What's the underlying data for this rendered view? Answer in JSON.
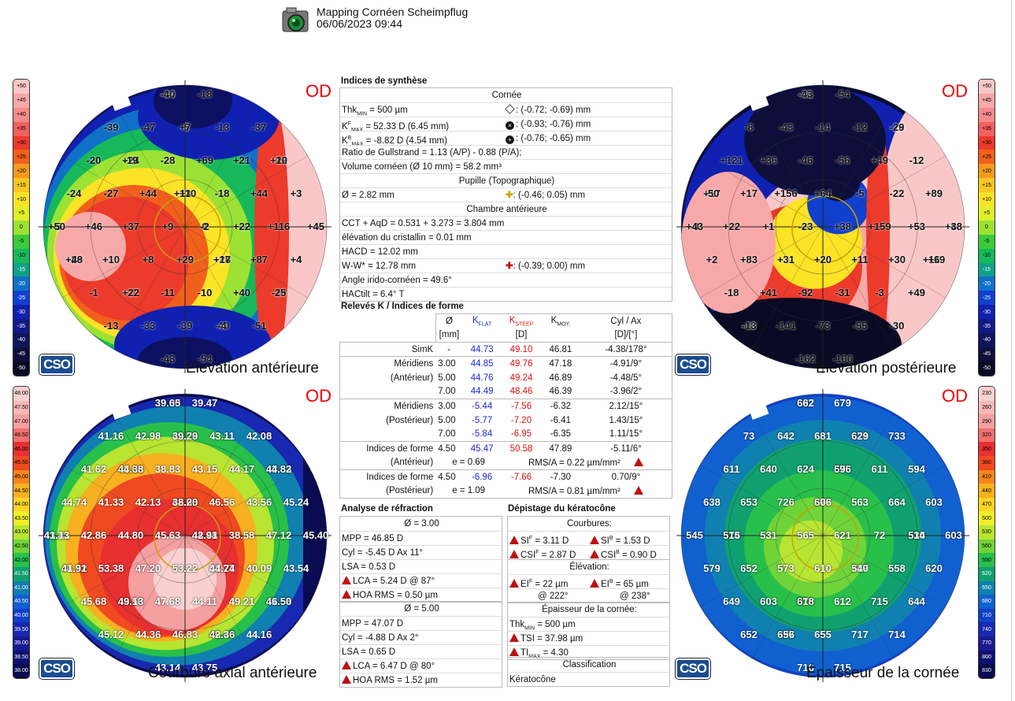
{
  "header": {
    "title": "Mapping Cornéen Scheimpflug",
    "datetime": "06/06/2023 09:44"
  },
  "eye": "OD",
  "maps": {
    "tl": {
      "title": "Élevation antérieure"
    },
    "tr": {
      "title": "Élevation postérieure"
    },
    "bl": {
      "title": "Courbure axial antérieure"
    },
    "br": {
      "title": "Épaisseur de la cornée"
    }
  },
  "scales": {
    "elevation": [
      "+50",
      "+45",
      "+40",
      "+35",
      "+30",
      "+25",
      "+20",
      "+15",
      "+10",
      "+5",
      "0",
      "-5",
      "-10",
      "-15",
      "-20",
      "-25",
      "-30",
      "-35",
      "-40",
      "-45",
      "-50"
    ],
    "elevation_colors": [
      "#f9c7c7",
      "#f7a8a8",
      "#f58a8a",
      "#f26060",
      "#ec3a2b",
      "#f0601c",
      "#f59a1e",
      "#f8c722",
      "#fbe326",
      "#dff02a",
      "#9be234",
      "#3cc93c",
      "#16b85a",
      "#10a08a",
      "#1070c8",
      "#1040d0",
      "#1020b0",
      "#101a88",
      "#10145a",
      "#0d0f3a",
      "#0a0a24"
    ],
    "curvature": [
      "48.00",
      "47.50",
      "47.00",
      "46.50",
      "46.00",
      "45.50",
      "45.00",
      "44.50",
      "44.00",
      "43.50",
      "43.00",
      "42.50",
      "42.00",
      "41.50",
      "41.00",
      "40.50",
      "40.00",
      "39.50",
      "39.00",
      "38.50",
      "38.00"
    ],
    "curvature_colors": [
      "#f9d0d0",
      "#f7b8b8",
      "#f5a0a0",
      "#f07070",
      "#e83030",
      "#f04a20",
      "#f5861c",
      "#f8b020",
      "#fbd426",
      "#eff02a",
      "#b8e432",
      "#6fd43a",
      "#28c04a",
      "#10a070",
      "#1080b0",
      "#1060d0",
      "#1040c8",
      "#1828b0",
      "#1a1a90",
      "#101070",
      "#0a0a50"
    ],
    "thickness": [
      "230",
      "260",
      "290",
      "320",
      "350",
      "380",
      "410",
      "440",
      "470",
      "500",
      "530",
      "560",
      "590",
      "620",
      "650",
      "680",
      "710",
      "740",
      "770",
      "800",
      "830"
    ],
    "thickness_colors": [
      "#f9d0d0",
      "#f7b8b8",
      "#f5a0a0",
      "#f07070",
      "#e83030",
      "#f04a20",
      "#f5861c",
      "#f8b020",
      "#fbd426",
      "#eff02a",
      "#b8e432",
      "#6fd43a",
      "#28c04a",
      "#10a070",
      "#1080b0",
      "#1060d0",
      "#1040c8",
      "#1828b0",
      "#1a1a90",
      "#101070",
      "#0a0a50"
    ]
  },
  "labels": {
    "tl": [
      "-34",
      "-40",
      "-18",
      "-39",
      "-47",
      "-5",
      "+7",
      "-13",
      "-37",
      "-20",
      "+24",
      "-19",
      "-28",
      "+69",
      "+21",
      "+22",
      "+10",
      "-24",
      "-27",
      "+44",
      "+3",
      "+110",
      "-18",
      "+44",
      "+3",
      "-5",
      "+50",
      "+46",
      "+37",
      "+9",
      "0",
      "-2",
      "+22",
      "+116",
      "+45",
      "+29",
      "+48",
      "+10",
      "+8",
      "+29",
      "+28",
      "+17",
      "+87",
      "+4",
      "-1",
      "+17",
      "+22",
      "-11",
      "-10",
      "+40",
      "-19",
      "-25",
      "-13",
      "-33",
      "-39",
      "-40",
      "-4",
      "-51",
      "-43",
      "-54"
    ],
    "tr": [
      "-31",
      "-43",
      "-54",
      "-8",
      "-43",
      "-14",
      "-12",
      "-16",
      "-29",
      "+121",
      "+36",
      "-46",
      "-56",
      "+49",
      "-12",
      "+17",
      "-50",
      "+17",
      "+156",
      "+64",
      "-5",
      "-22",
      "+89",
      "-9",
      "+43",
      "+22",
      "+1",
      "-23",
      "+38",
      "+159",
      "+53",
      "+43",
      "+38",
      "+2",
      "+83",
      "+31",
      "+20",
      "+11",
      "+30",
      "+119",
      "+6",
      "-18",
      "+41",
      "-92",
      "-31",
      "-3",
      "+49",
      "-48",
      "-13",
      "-141",
      "-73",
      "-55",
      "-30",
      "-162",
      "-100"
    ],
    "bl": [
      "39.00",
      "39.65",
      "39.47",
      "41.16",
      "42.98",
      "42.78",
      "39.29",
      "43.11",
      "42.08",
      "41.62",
      "43.60",
      "44.38",
      "38.83",
      "43.15",
      "44.17",
      "43.83",
      "44.82",
      "44.74",
      "41.33",
      "42.13",
      "42.63",
      "38.20",
      "46.56",
      "43.56",
      "45.24",
      "43.41",
      "41.13",
      "42.86",
      "44.80",
      "45.63",
      "44.48",
      "42.91",
      "38.58",
      "47.12",
      "45.40",
      "44.52",
      "41.91",
      "53.38",
      "47.20",
      "53.22",
      "51.27",
      "44.74",
      "40.09",
      "43.54",
      "45.68",
      "43.56",
      "49.13",
      "47.68",
      "44.11",
      "49.21",
      "41.53",
      "46.50",
      "45.12",
      "44.36",
      "46.83",
      "46.40",
      "42.36",
      "44.16",
      "43.14",
      "43.75"
    ],
    "br": [
      "697",
      "662",
      "679",
      "73",
      "642",
      "681",
      "673",
      "629",
      "733",
      "611",
      "640",
      "624",
      "675",
      "596",
      "611",
      "594",
      "638",
      "653",
      "726",
      "577",
      "606",
      "563",
      "664",
      "603",
      "545",
      "574",
      "515",
      "531",
      "565",
      "621",
      "72",
      "530",
      "514",
      "603",
      "579",
      "652",
      "573",
      "610",
      "717",
      "540",
      "558",
      "620",
      "649",
      "603",
      "676",
      "618",
      "612",
      "715",
      "644",
      "652",
      "697",
      "656",
      "655",
      "717",
      "714",
      "716",
      "715"
    ]
  },
  "summary": {
    "title": "Indices de synthèse",
    "cornea_header": "Cornée",
    "thk_min": "Thk",
    "thk_min_sub": "MIN",
    "thk_min_val": "= 500 µm",
    "thk_min_pos": ": (-0.72; -0.69) mm",
    "kmaxf": "K",
    "kmaxf_sup": "F",
    "kmaxf_sub": "MAX",
    "kmaxf_val": "= 52.33 D (6.45 mm)",
    "kmaxf_pos": ": (-0.93; -0.76) mm",
    "kmaxb_sup": "B",
    "kmaxb_val": "= -8.82 D (4.54 mm)",
    "kmaxb_pos": ": (-0.76; -0.65) mm",
    "gullstrand": "Ratio de Gullstrand = 1.13 (A/P) - 0.88 (P/A);",
    "volume": "Volume cornéen (Ø 10 mm) = 58.2 mm³",
    "pupil_header": "Pupille (Topographique)",
    "pupil": "Ø = 2.82 mm",
    "pupil_pos": ": (-0.46; 0.05) mm",
    "ac_header": "Chambre antérieure",
    "cct": "CCT + AqD = 0.531 + 3.273 = 3.804 mm",
    "lens": "élévation du cristallin = 0.01 mm",
    "hacd": "HACD = 12.02 mm",
    "ww": "W-W* = 12.78 mm",
    "ww_pos": ": (-0.39; 0.00) mm",
    "angle": "Angle irido-cornéen = 49.6°",
    "hactilt": "HACtilt = 6.4° T"
  },
  "k_section": {
    "title": "Relevés K / Indices de forme",
    "col_d": "Ø",
    "col_kf": "K",
    "col_kf_sub": "FLAT",
    "col_ks": "K",
    "col_ks_sub": "STEEP",
    "col_km": "K",
    "col_km_sub": "MOY.",
    "col_cyl": "Cyl / Ax",
    "unit_mm": "[mm]",
    "unit_d": "[D]",
    "unit_d2": "[D]/[°]",
    "simk": {
      "label": "SimK",
      "d": "-",
      "kf": "44.73",
      "ks": "49.10",
      "km": "46.81",
      "cyl": "-4.38/178°"
    },
    "ant_label1": "Méridiens",
    "ant_label2": "(Antérieur)",
    "ant": [
      {
        "d": "3.00",
        "kf": "44.85",
        "ks": "49.76",
        "km": "47.18",
        "cyl": "-4.91/9°"
      },
      {
        "d": "5.00",
        "kf": "44.76",
        "ks": "49.24",
        "km": "46.89",
        "cyl": "-4.48/5°"
      },
      {
        "d": "7.00",
        "kf": "44.49",
        "ks": "48.46",
        "km": "46.39",
        "cyl": "-3.96/2°"
      }
    ],
    "post_label1": "Méridiens",
    "post_label2": "(Postérieur)",
    "post": [
      {
        "d": "3.00",
        "kf": "-5.44",
        "ks": "-7.56",
        "km": "-6.32",
        "cyl": "2.12/15°"
      },
      {
        "d": "5.00",
        "kf": "-5.77",
        "ks": "-7.20",
        "km": "-6.41",
        "cyl": "1.43/15°"
      },
      {
        "d": "7.00",
        "kf": "-5.84",
        "ks": "-6.95",
        "km": "-6.35",
        "cyl": "1.11/15°"
      }
    ],
    "sf_ant": {
      "l1": "Indices de forme",
      "l2": "(Antérieur)",
      "d": "4.50",
      "kf": "45.47",
      "ks": "50.58",
      "km": "47.89",
      "cyl": "-5.11/6°",
      "e": "e = 0.69",
      "rms": "RMS/A = 0.22 µm/mm²"
    },
    "sf_post": {
      "l1": "Indices de forme",
      "l2": "(Postérieur)",
      "d": "4.50",
      "kf": "-6.96",
      "ks": "-7.66",
      "km": "-7.30",
      "cyl": "0.70/9°",
      "e": "e = 1.09",
      "rms": "RMS/A = 0.81 µm/mm²"
    }
  },
  "refraction": {
    "title": "Analyse de réfraction",
    "z3": {
      "head": "Ø = 3.00",
      "mpp": "MPP = 46.85 D",
      "cyl": "Cyl = -5.45 D Ax 11°",
      "lsa": "LSA = 0.53 D",
      "lca": "LCA = 5.24 D @ 87°",
      "hoa": "HOA RMS = 0.50 µm"
    },
    "z5": {
      "head": "Ø = 5.00",
      "mpp": "MPP = 47.07 D",
      "cyl": "Cyl = -4.88 D Ax 2°",
      "lsa": "LSA = 0.65 D",
      "lca": "LCA = 6.47 D @ 80°",
      "hoa": "HOA RMS = 1.52 µm"
    }
  },
  "kc": {
    "title": "Dépistage du kératocône",
    "curv_head": "Courbures:",
    "sif": "SI",
    "sif_sup": "F",
    "sif_val": " = 3.11 D",
    "sib": "SI",
    "sib_sup": "B",
    "sib_val": " = 1.53 D",
    "csif": "CSI",
    "csif_sup": "F",
    "csif_val": " = 2.87 D",
    "csib": "CSI",
    "csib_sup": "B",
    "csib_val": " = 0.90 D",
    "elev_head": "Élévation:",
    "eif": "EI",
    "eif_sup": "F",
    "eif_val": " = 22 µm",
    "eib": "EI",
    "eib_sup": "B",
    "eib_val": " = 65 µm",
    "eif_ax": "@ 222°",
    "eib_ax": "@ 238°",
    "thick_head": "Épaisseur de la cornée:",
    "thk": "Thk",
    "thk_sub": "MIN",
    "thk_val": " = 500 µm",
    "tsi": "TSI = 37.98 µm",
    "ti": "TI",
    "ti_sub": "MAX",
    "ti_val": " = 4.30",
    "class_head": "Classification",
    "class_val": "Kératocône"
  },
  "logo": "CSO"
}
